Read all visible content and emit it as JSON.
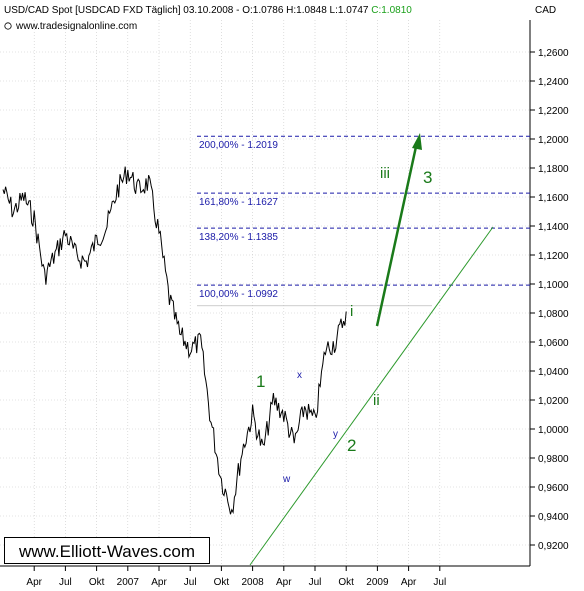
{
  "header": {
    "instrument": "USD/CAD Spot [USDCAD FXD  Täglich] 03.10.2008 - O:1.0786 H:1.0848 L:1.0747",
    "close": "C:1.0810",
    "source": "www.tradesignalonline.com",
    "currency": "CAD"
  },
  "brand": "www.Elliott-Waves.com",
  "colors": {
    "price": "#000000",
    "fib_line": "#1a1aa8",
    "trend": "#2e9a2e",
    "wave": "#1a7a1a",
    "close_highlight": "#1aa01a",
    "grid": "#c8c8c8"
  },
  "chart_data": {
    "type": "line",
    "title": "",
    "xlabel": "",
    "ylabel": "CAD",
    "ylim": [
      0.9,
      1.28
    ],
    "x_ticks": [
      "Apr",
      "Jul",
      "Okt",
      "2007",
      "Apr",
      "Jul",
      "Okt",
      "2008",
      "Apr",
      "Jul",
      "Okt",
      "2009",
      "Apr",
      "Jul"
    ],
    "y_ticks": [
      "1,2600",
      "1,2400",
      "1,2200",
      "1,2000",
      "1,1800",
      "1,1600",
      "1,1400",
      "1,1200",
      "1,1000",
      "1,0800",
      "1,0600",
      "1,0400",
      "1,0200",
      "1,0000",
      "0,9800",
      "0,9600",
      "0,9400",
      "0,9200"
    ],
    "series": [
      {
        "points": [
          [
            "2006-01",
            1.165
          ],
          [
            "2006-02",
            1.15
          ],
          [
            "2006-03",
            1.16
          ],
          [
            "2006-04",
            1.145
          ],
          [
            "2006-05",
            1.105
          ],
          [
            "2006-06",
            1.12
          ],
          [
            "2006-07",
            1.135
          ],
          [
            "2006-08",
            1.12
          ],
          [
            "2006-09",
            1.115
          ],
          [
            "2006-10",
            1.13
          ],
          [
            "2006-11",
            1.14
          ],
          [
            "2006-12",
            1.165
          ],
          [
            "2007-01",
            1.178
          ],
          [
            "2007-02",
            1.165
          ],
          [
            "2007-03",
            1.17
          ],
          [
            "2007-04",
            1.135
          ],
          [
            "2007-05",
            1.09
          ],
          [
            "2007-06",
            1.065
          ],
          [
            "2007-07",
            1.055
          ],
          [
            "2007-08",
            1.06
          ],
          [
            "2007-09",
            1.005
          ],
          [
            "2007-10",
            0.965
          ],
          [
            "2007-11",
            0.945
          ],
          [
            "2007-12",
            0.985
          ],
          [
            "2008-01",
            1.01
          ],
          [
            "2008-02",
            0.985
          ],
          [
            "2008-03",
            1.02
          ],
          [
            "2008-04",
            1.01
          ],
          [
            "2008-05",
            0.99
          ],
          [
            "2008-06",
            1.015
          ],
          [
            "2008-07",
            1.005
          ],
          [
            "2008-08",
            1.055
          ],
          [
            "2008-09",
            1.06
          ],
          [
            "2008-10",
            1.081
          ]
        ]
      }
    ],
    "fib_levels": [
      {
        "label": "200,00% - 1.2019",
        "value": 1.2019
      },
      {
        "label": "161,80% - 1.1627",
        "value": 1.1627
      },
      {
        "label": "138,20% - 1.1385",
        "value": 1.1385
      },
      {
        "label": "100,00% - 1.0992",
        "value": 1.0992
      }
    ],
    "wave_labels": [
      {
        "text": "1",
        "size": "big"
      },
      {
        "text": "2",
        "size": "big"
      },
      {
        "text": "3",
        "size": "big"
      },
      {
        "text": "i",
        "size": "small"
      },
      {
        "text": "ii",
        "size": "small"
      },
      {
        "text": "iii",
        "size": "small"
      },
      {
        "text": "x",
        "size": "tiny"
      },
      {
        "text": "w",
        "size": "tiny"
      },
      {
        "text": "y",
        "size": "tiny"
      }
    ]
  }
}
